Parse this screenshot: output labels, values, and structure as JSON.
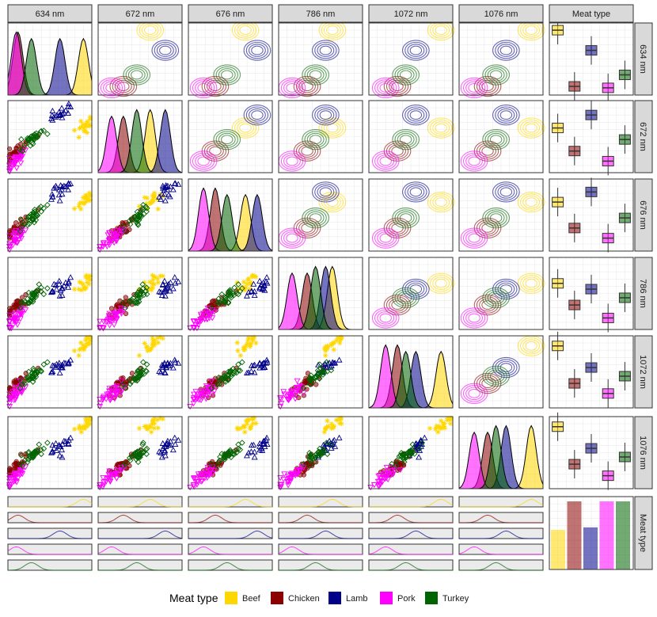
{
  "chart_data": {
    "type": "pairs",
    "title": "",
    "variables": [
      "634 nm",
      "672 nm",
      "676 nm",
      "786 nm",
      "1072 nm",
      "1076 nm"
    ],
    "group_header": "Meat type",
    "legend": {
      "title": "Meat type",
      "position": "bottom",
      "items": [
        {
          "name": "Beef",
          "color": "#FFD700"
        },
        {
          "name": "Chicken",
          "color": "#8B0000"
        },
        {
          "name": "Lamb",
          "color": "#00008B"
        },
        {
          "name": "Pork",
          "color": "#FF00FF"
        },
        {
          "name": "Turkey",
          "color": "#006400"
        }
      ]
    },
    "group_counts": [
      32,
      55,
      34,
      55,
      55
    ],
    "group_scores": {
      "Beef": [
        0.9,
        0.62,
        0.68,
        0.64,
        0.86,
        0.86
      ],
      "Chicken": [
        0.12,
        0.3,
        0.32,
        0.34,
        0.34,
        0.34
      ],
      "Lamb": [
        0.62,
        0.8,
        0.82,
        0.56,
        0.56,
        0.56
      ],
      "Pork": [
        0.1,
        0.16,
        0.18,
        0.16,
        0.2,
        0.18
      ],
      "Turkey": [
        0.28,
        0.46,
        0.46,
        0.44,
        0.44,
        0.44
      ]
    },
    "grid": true
  }
}
